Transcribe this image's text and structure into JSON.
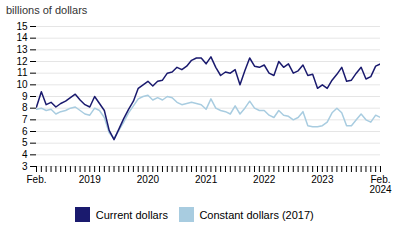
{
  "chart_data": {
    "type": "line",
    "categories": [
      "Feb.",
      null,
      null,
      null,
      null,
      null,
      null,
      null,
      null,
      null,
      null,
      "2019",
      null,
      null,
      null,
      null,
      null,
      null,
      null,
      null,
      null,
      null,
      null,
      "2020",
      null,
      null,
      null,
      null,
      null,
      null,
      null,
      null,
      null,
      null,
      null,
      "2021",
      null,
      null,
      null,
      null,
      null,
      null,
      null,
      null,
      null,
      null,
      null,
      "2022",
      null,
      null,
      null,
      null,
      null,
      null,
      null,
      null,
      null,
      null,
      null,
      "2023",
      null,
      null,
      null,
      null,
      null,
      null,
      null,
      null,
      null,
      null,
      null,
      "Feb.\n2024"
    ],
    "series": [
      {
        "name": "Current dollars",
        "color": "#1a1a6e",
        "values": [
          8.1,
          9.4,
          8.3,
          8.5,
          8.1,
          8.4,
          8.6,
          8.9,
          9.2,
          8.7,
          8.3,
          8.1,
          9.0,
          8.4,
          7.8,
          6.1,
          5.3,
          6.2,
          7.1,
          7.9,
          8.6,
          9.7,
          10.0,
          10.3,
          9.9,
          10.3,
          10.4,
          11.0,
          11.1,
          11.5,
          11.3,
          11.6,
          12.1,
          12.3,
          12.3,
          11.8,
          12.4,
          11.5,
          10.8,
          11.1,
          11.0,
          11.3,
          10.0,
          11.2,
          12.3,
          11.6,
          11.5,
          11.7,
          11.0,
          10.8,
          12.0,
          11.5,
          11.8,
          11.0,
          11.2,
          11.7,
          10.8,
          10.9,
          9.7,
          10.0,
          9.7,
          10.4,
          10.9,
          11.5,
          10.3,
          10.4,
          11.0,
          11.5,
          10.5,
          10.7,
          11.6,
          11.8
        ]
      },
      {
        "name": "Constant dollars (2017)",
        "color": "#a8cce0",
        "values": [
          7.9,
          8.0,
          7.8,
          7.9,
          7.5,
          7.7,
          7.8,
          8.0,
          8.1,
          7.8,
          7.5,
          7.4,
          8.0,
          7.8,
          7.2,
          5.9,
          5.4,
          6.1,
          6.8,
          7.6,
          8.2,
          8.8,
          9.0,
          9.1,
          8.7,
          8.9,
          8.7,
          9.0,
          8.9,
          8.5,
          8.3,
          8.4,
          8.5,
          8.4,
          8.3,
          7.9,
          8.8,
          8.0,
          7.8,
          7.7,
          7.5,
          8.2,
          7.5,
          8.0,
          8.6,
          8.0,
          7.8,
          7.8,
          7.4,
          7.2,
          7.8,
          7.4,
          7.3,
          7.0,
          7.2,
          7.7,
          6.5,
          6.4,
          6.4,
          6.5,
          6.8,
          7.6,
          8.0,
          7.6,
          6.5,
          6.5,
          7.0,
          7.5,
          7.0,
          6.8,
          7.4,
          7.2
        ]
      }
    ],
    "ylabel": "billions of dollars",
    "ylim": [
      3,
      15
    ],
    "yticks": [
      3,
      4,
      5,
      6,
      7,
      8,
      9,
      10,
      11,
      12,
      13,
      14,
      15
    ],
    "grid": true,
    "legend": "bottom"
  }
}
